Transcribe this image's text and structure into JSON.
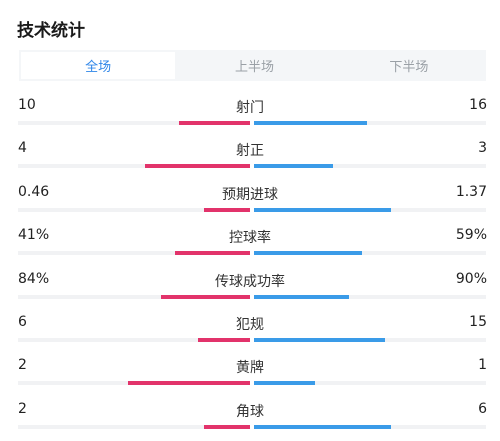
{
  "header": {
    "title": "技术统计"
  },
  "tabs": [
    {
      "label": "全场",
      "active": true
    },
    {
      "label": "上半场",
      "active": false
    },
    {
      "label": "下半场",
      "active": false
    }
  ],
  "colors": {
    "home": "#e2336b",
    "away": "#3a9be8",
    "active_tab": "#2f86e8"
  },
  "stats": [
    {
      "label": "射门",
      "home": "10",
      "away": "16",
      "home_share": 0.385,
      "away_share": 0.615
    },
    {
      "label": "射正",
      "home": "4",
      "away": "3",
      "home_share": 0.571,
      "away_share": 0.429
    },
    {
      "label": "预期进球",
      "home": "0.46",
      "away": "1.37",
      "home_share": 0.251,
      "away_share": 0.749
    },
    {
      "label": "控球率",
      "home": "41%",
      "away": "59%",
      "home_share": 0.41,
      "away_share": 0.59
    },
    {
      "label": "传球成功率",
      "home": "84%",
      "away": "90%",
      "home_share": 0.483,
      "away_share": 0.517
    },
    {
      "label": "犯规",
      "home": "6",
      "away": "15",
      "home_share": 0.286,
      "away_share": 0.714
    },
    {
      "label": "黄牌",
      "home": "2",
      "away": "1",
      "home_share": 0.667,
      "away_share": 0.333
    },
    {
      "label": "角球",
      "home": "2",
      "away": "6",
      "home_share": 0.25,
      "away_share": 0.75
    }
  ]
}
